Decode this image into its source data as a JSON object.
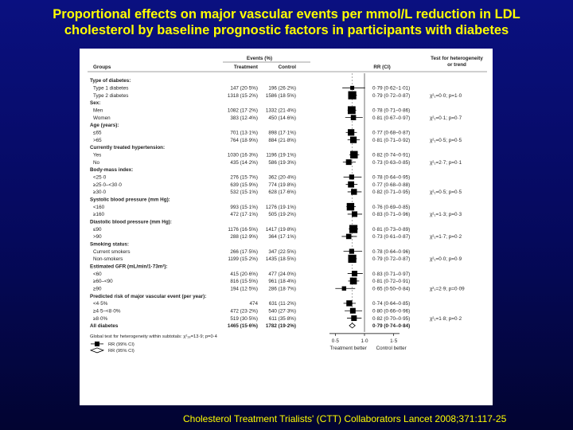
{
  "slide_title": "Proportional effects on major vascular events per mmol/L reduction in LDL\ncholesterol by baseline prognostic factors in participants with diabetes",
  "citation": "Cholesterol Treatment Trialists' (CTT) Collaborators Lancet 2008;371:117-25",
  "colors": {
    "background": "#05095c",
    "title": "#ffff00",
    "panel": "#ffffff",
    "marker": "#000000"
  },
  "chart_data": {
    "type": "forest",
    "headers": {
      "groups": "Groups",
      "events": "Events (%)",
      "treatment": "Treatment",
      "control": "Control",
      "rr": "RR (CI)",
      "heterogeneity": "Test for heterogeneity\nor trend"
    },
    "x_axis": {
      "ticks": [
        "0·5",
        "1·0",
        "1·5"
      ],
      "tick_values": [
        0.5,
        1.0,
        1.5
      ],
      "range": [
        0.4,
        1.6
      ],
      "label_left": "Treatment better",
      "label_right": "Control better"
    },
    "subtotal_footnote": "Global test for heterogeneity within subtotals: χ²₁₈=13·9; p=0·4",
    "legend": [
      {
        "symbol": "square",
        "label": "RR (99% CI)"
      },
      {
        "symbol": "diamond",
        "label": "RR (95% CI)"
      }
    ],
    "rows": [
      {
        "kind": "header",
        "label": "Type of diabetes:"
      },
      {
        "kind": "data",
        "label": "Type 1 diabetes",
        "treatment": "147 (20·5%)",
        "control": "196 (26·2%)",
        "rr_text": "0·79 (0·62–1·01)",
        "rr": 0.79,
        "lo": 0.62,
        "hi": 1.01,
        "weight": 0.25
      },
      {
        "kind": "data",
        "label": "Type 2 diabetes",
        "treatment": "1318 (15·2%)",
        "control": "1586 (18·5%)",
        "rr_text": "0·79 (0·72–0·87)",
        "rr": 0.79,
        "lo": 0.72,
        "hi": 0.87,
        "weight": 0.9,
        "het": "χ²₁=0·0; p=1·0"
      },
      {
        "kind": "header",
        "label": "Sex:"
      },
      {
        "kind": "data",
        "label": "Men",
        "treatment": "1082 (17·2%)",
        "control": "1332 (21·4%)",
        "rr_text": "0·78 (0·71–0·86)",
        "rr": 0.78,
        "lo": 0.71,
        "hi": 0.86,
        "weight": 0.85
      },
      {
        "kind": "data",
        "label": "Women",
        "treatment": "383 (12·4%)",
        "control": "450 (14·6%)",
        "rr_text": "0·81 (0·67–0·97)",
        "rr": 0.81,
        "lo": 0.67,
        "hi": 0.97,
        "weight": 0.45,
        "het": "χ²₁=0·1; p=0·7"
      },
      {
        "kind": "header",
        "label": "Age (years):"
      },
      {
        "kind": "data",
        "label": "≤65",
        "treatment": "701 (13·1%)",
        "control": "898 (17·1%)",
        "rr_text": "0·77 (0·68–0·87)",
        "rr": 0.77,
        "lo": 0.68,
        "hi": 0.87,
        "weight": 0.65
      },
      {
        "kind": "data",
        "label": ">65",
        "treatment": "764 (18·9%)",
        "control": "884 (21·8%)",
        "rr_text": "0·81 (0·71–0·92)",
        "rr": 0.81,
        "lo": 0.71,
        "hi": 0.92,
        "weight": 0.65,
        "het": "χ²₁=0·5; p=0·5"
      },
      {
        "kind": "header",
        "label": "Currently treated hypertension:"
      },
      {
        "kind": "data",
        "label": "Yes",
        "treatment": "1030 (16·3%)",
        "control": "1196 (19·1%)",
        "rr_text": "0·82 (0·74–0·91)",
        "rr": 0.82,
        "lo": 0.74,
        "hi": 0.91,
        "weight": 0.8
      },
      {
        "kind": "data",
        "label": "No",
        "treatment": "435 (14·2%)",
        "control": "586 (19·3%)",
        "rr_text": "0·73 (0·63–0·85)",
        "rr": 0.73,
        "lo": 0.63,
        "hi": 0.85,
        "weight": 0.5,
        "het": "χ²₁=2·7; p=0·1"
      },
      {
        "kind": "header",
        "label": "Body-mass index:"
      },
      {
        "kind": "data",
        "label": "<25·0",
        "treatment": "276 (15·7%)",
        "control": "362 (20·4%)",
        "rr_text": "0·78 (0·64–0·95)",
        "rr": 0.78,
        "lo": 0.64,
        "hi": 0.95,
        "weight": 0.4
      },
      {
        "kind": "data",
        "label": "≥25·0–<30·0",
        "treatment": "639 (15·9%)",
        "control": "774 (19·8%)",
        "rr_text": "0·77 (0·68–0·88)",
        "rr": 0.77,
        "lo": 0.68,
        "hi": 0.88,
        "weight": 0.6
      },
      {
        "kind": "data",
        "label": "≥30·0",
        "treatment": "532 (15·1%)",
        "control": "628 (17·6%)",
        "rr_text": "0·82 (0·71–0·95)",
        "rr": 0.82,
        "lo": 0.71,
        "hi": 0.95,
        "weight": 0.55,
        "het": "χ²₁=0·5; p=0·5"
      },
      {
        "kind": "header",
        "label": "Systolic blood pressure (mm Hg):"
      },
      {
        "kind": "data",
        "label": "<160",
        "treatment": "993 (15·1%)",
        "control": "1276 (19·1%)",
        "rr_text": "0·76 (0·69–0·85)",
        "rr": 0.76,
        "lo": 0.69,
        "hi": 0.85,
        "weight": 0.8
      },
      {
        "kind": "data",
        "label": "≥160",
        "treatment": "472 (17·1%)",
        "control": "505 (19·2%)",
        "rr_text": "0·83 (0·71–0·96)",
        "rr": 0.83,
        "lo": 0.71,
        "hi": 0.96,
        "weight": 0.5,
        "het": "χ²₁=1·3; p=0·3"
      },
      {
        "kind": "header",
        "label": "Diastolic blood pressure (mm Hg):"
      },
      {
        "kind": "data",
        "label": "≤90",
        "treatment": "1176 (16·5%)",
        "control": "1417 (19·8%)",
        "rr_text": "0·81 (0·73–0·89)",
        "rr": 0.81,
        "lo": 0.73,
        "hi": 0.89,
        "weight": 0.9
      },
      {
        "kind": "data",
        "label": ">90",
        "treatment": "288 (12·9%)",
        "control": "364 (17·1%)",
        "rr_text": "0·73 (0·61–0·87)",
        "rr": 0.73,
        "lo": 0.61,
        "hi": 0.87,
        "weight": 0.45,
        "het": "χ²₁=1·7; p=0·2"
      },
      {
        "kind": "header",
        "label": "Smoking status:"
      },
      {
        "kind": "data",
        "label": "Current smokers",
        "treatment": "266 (17·5%)",
        "control": "347 (22·5%)",
        "rr_text": "0·78 (0·64–0·96)",
        "rr": 0.78,
        "lo": 0.64,
        "hi": 0.96,
        "weight": 0.4
      },
      {
        "kind": "data",
        "label": "Non-smokers",
        "treatment": "1199 (15·2%)",
        "control": "1435 (18·5%)",
        "rr_text": "0·79 (0·72–0·87)",
        "rr": 0.79,
        "lo": 0.72,
        "hi": 0.87,
        "weight": 0.9,
        "het": "χ²₁=0·0; p=0·9"
      },
      {
        "kind": "header",
        "label": "Estimated GFR (mL/min/1·73m²):"
      },
      {
        "kind": "data",
        "label": "<60",
        "treatment": "415 (20·6%)",
        "control": "477 (24·0%)",
        "rr_text": "0·83 (0·71–0·97)",
        "rr": 0.83,
        "lo": 0.71,
        "hi": 0.97,
        "weight": 0.5
      },
      {
        "kind": "data",
        "label": "≥60–<90",
        "treatment": "816 (15·5%)",
        "control": "961 (18·4%)",
        "rr_text": "0·81 (0·72–0·91)",
        "rr": 0.81,
        "lo": 0.72,
        "hi": 0.91,
        "weight": 0.7
      },
      {
        "kind": "data",
        "label": "≥90",
        "treatment": "194 (12·5%)",
        "control": "286 (18·7%)",
        "rr_text": "0·65 (0·50–0·84)",
        "rr": 0.65,
        "lo": 0.5,
        "hi": 0.84,
        "weight": 0.3,
        "het": "χ²₁=2·9; p=0·09"
      },
      {
        "kind": "header",
        "label": "Predicted risk of major vascular event (per year):"
      },
      {
        "kind": "data",
        "label": "<4·5%",
        "treatment": "474",
        "control": "631 (11·2%)",
        "rr_text": "0·74 (0·64–0·85)",
        "rr": 0.74,
        "lo": 0.64,
        "hi": 0.85,
        "weight": 0.55
      },
      {
        "kind": "data",
        "label": "≥4·5–<8·0%",
        "treatment": "472 (23·2%)",
        "control": "540 (27·3%)",
        "rr_text": "0·80 (0·66–0·96)",
        "rr": 0.8,
        "lo": 0.66,
        "hi": 0.96,
        "weight": 0.5
      },
      {
        "kind": "data",
        "label": "≥8·0%",
        "treatment": "519 (30·5%)",
        "control": "611 (35·8%)",
        "rr_text": "0·82 (0·70–0·95)",
        "rr": 0.82,
        "lo": 0.7,
        "hi": 0.95,
        "weight": 0.5,
        "het": "χ²₁=1·8; p=0·2"
      },
      {
        "kind": "total",
        "label": "All diabetes",
        "treatment": "1465 (15·6%)",
        "control": "1782 (19·2%)",
        "rr_text": "0·79 (0·74–0·84)",
        "rr": 0.79,
        "lo": 0.74,
        "hi": 0.84
      }
    ]
  }
}
